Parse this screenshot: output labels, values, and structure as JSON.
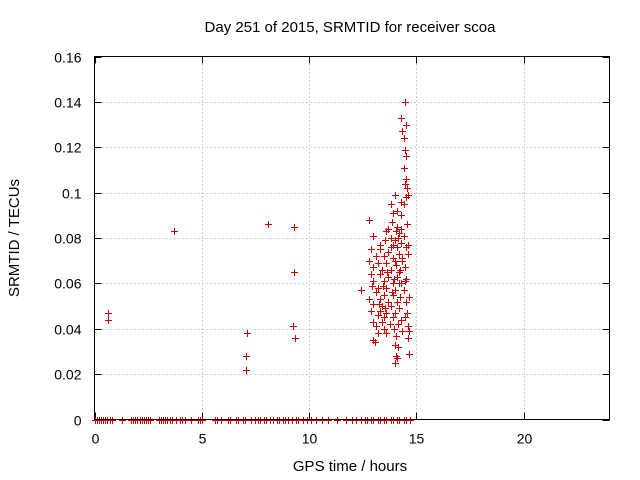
{
  "chart_data": {
    "type": "scatter",
    "title": "Day 251 of 2015, SRMTID for receiver scoa",
    "xlabel": "GPS time / hours",
    "ylabel": "SRMTID / TECUs",
    "xlim": [
      0,
      24
    ],
    "ylim": [
      0,
      0.16
    ],
    "xticks": [
      0,
      5,
      10,
      15,
      20
    ],
    "xtick_labels": [
      "0",
      "5",
      "10",
      "15",
      "20"
    ],
    "yticks": [
      0,
      0.02,
      0.04,
      0.06,
      0.08,
      0.1,
      0.12,
      0.14,
      0.16
    ],
    "ytick_labels": [
      "0",
      "0.02",
      "0.04",
      "0.06",
      "0.08",
      "0.1",
      "0.12",
      "0.14",
      "0.16"
    ],
    "grid": true,
    "marker": "+",
    "color": "#cc0000",
    "series": [
      {
        "name": "SRMTID",
        "points": [
          [
            0.65,
            0.047
          ],
          [
            0.65,
            0.044
          ],
          [
            3.7,
            0.083
          ],
          [
            8.1,
            0.086
          ],
          [
            9.3,
            0.085
          ],
          [
            9.3,
            0.065
          ],
          [
            9.25,
            0.041
          ],
          [
            9.35,
            0.036
          ],
          [
            7.1,
            0.038
          ],
          [
            7.05,
            0.028
          ],
          [
            7.05,
            0.022
          ],
          [
            12.4,
            0.057
          ],
          [
            14.45,
            0.14
          ],
          [
            14.3,
            0.133
          ],
          [
            14.5,
            0.13
          ],
          [
            14.35,
            0.127
          ],
          [
            14.4,
            0.124
          ],
          [
            14.45,
            0.119
          ],
          [
            14.5,
            0.116
          ],
          [
            14.4,
            0.111
          ],
          [
            14.5,
            0.106
          ],
          [
            14.45,
            0.104
          ],
          [
            14.55,
            0.102
          ],
          [
            14.6,
            0.099
          ],
          [
            14.5,
            0.098
          ],
          [
            14.0,
            0.099
          ],
          [
            14.3,
            0.096
          ],
          [
            14.4,
            0.095
          ],
          [
            13.8,
            0.095
          ],
          [
            14.1,
            0.092
          ],
          [
            14.3,
            0.09
          ],
          [
            13.9,
            0.091
          ],
          [
            14.55,
            0.086
          ],
          [
            13.85,
            0.087
          ],
          [
            14.1,
            0.085
          ],
          [
            14.3,
            0.084
          ],
          [
            12.8,
            0.088
          ],
          [
            13.6,
            0.083
          ],
          [
            14.05,
            0.083
          ],
          [
            14.2,
            0.082
          ],
          [
            14.4,
            0.081
          ],
          [
            13.0,
            0.081
          ],
          [
            13.8,
            0.08
          ],
          [
            14.0,
            0.079
          ],
          [
            14.3,
            0.078
          ],
          [
            14.6,
            0.077
          ],
          [
            13.9,
            0.077
          ],
          [
            14.1,
            0.076
          ],
          [
            14.5,
            0.076
          ],
          [
            12.9,
            0.075
          ],
          [
            13.3,
            0.075
          ],
          [
            13.7,
            0.074
          ],
          [
            14.2,
            0.073
          ],
          [
            14.6,
            0.073
          ],
          [
            13.1,
            0.072
          ],
          [
            13.5,
            0.072
          ],
          [
            13.9,
            0.071
          ],
          [
            14.35,
            0.07
          ],
          [
            12.8,
            0.07
          ],
          [
            13.2,
            0.069
          ],
          [
            13.6,
            0.069
          ],
          [
            14.05,
            0.068
          ],
          [
            14.45,
            0.067
          ],
          [
            13.0,
            0.067
          ],
          [
            13.4,
            0.066
          ],
          [
            13.8,
            0.066
          ],
          [
            14.2,
            0.065
          ],
          [
            12.9,
            0.064
          ],
          [
            13.3,
            0.064
          ],
          [
            13.7,
            0.063
          ],
          [
            14.1,
            0.063
          ],
          [
            14.5,
            0.062
          ],
          [
            13.0,
            0.061
          ],
          [
            13.5,
            0.061
          ],
          [
            13.9,
            0.06
          ],
          [
            14.3,
            0.06
          ],
          [
            12.95,
            0.059
          ],
          [
            13.2,
            0.058
          ],
          [
            13.6,
            0.058
          ],
          [
            14.0,
            0.057
          ],
          [
            14.4,
            0.057
          ],
          [
            13.1,
            0.056
          ],
          [
            13.5,
            0.055
          ],
          [
            13.9,
            0.055
          ],
          [
            14.25,
            0.054
          ],
          [
            14.65,
            0.054
          ],
          [
            12.8,
            0.053
          ],
          [
            13.3,
            0.053
          ],
          [
            13.7,
            0.052
          ],
          [
            14.1,
            0.052
          ],
          [
            14.5,
            0.052
          ],
          [
            13.0,
            0.051
          ],
          [
            13.4,
            0.05
          ],
          [
            13.8,
            0.05
          ],
          [
            14.2,
            0.049
          ],
          [
            12.9,
            0.048
          ],
          [
            13.3,
            0.048
          ],
          [
            13.6,
            0.047
          ],
          [
            14.0,
            0.047
          ],
          [
            14.55,
            0.047
          ],
          [
            13.2,
            0.046
          ],
          [
            13.5,
            0.045
          ],
          [
            13.9,
            0.045
          ],
          [
            14.3,
            0.044
          ],
          [
            13.0,
            0.043
          ],
          [
            13.4,
            0.043
          ],
          [
            13.75,
            0.042
          ],
          [
            14.15,
            0.042
          ],
          [
            14.6,
            0.041
          ],
          [
            13.1,
            0.041
          ],
          [
            13.5,
            0.04
          ],
          [
            13.95,
            0.04
          ],
          [
            14.35,
            0.039
          ],
          [
            14.65,
            0.039
          ],
          [
            13.2,
            0.038
          ],
          [
            13.6,
            0.038
          ],
          [
            14.05,
            0.037
          ],
          [
            14.6,
            0.036
          ],
          [
            13.0,
            0.035
          ],
          [
            13.05,
            0.034
          ],
          [
            14.0,
            0.033
          ],
          [
            14.15,
            0.032
          ],
          [
            14.05,
            0.028
          ],
          [
            14.1,
            0.027
          ],
          [
            14.0,
            0.025
          ],
          [
            14.65,
            0.029
          ],
          [
            13.3,
            0.077
          ],
          [
            13.55,
            0.079
          ],
          [
            13.8,
            0.076
          ],
          [
            14.15,
            0.08
          ],
          [
            14.35,
            0.071
          ],
          [
            13.65,
            0.065
          ],
          [
            13.95,
            0.062
          ],
          [
            14.25,
            0.066
          ],
          [
            13.45,
            0.059
          ],
          [
            13.85,
            0.056
          ],
          [
            14.45,
            0.061
          ],
          [
            13.25,
            0.051
          ],
          [
            13.55,
            0.049
          ],
          [
            14.45,
            0.045
          ],
          [
            13.7,
            0.084
          ],
          [
            14.0,
            0.07
          ],
          [
            14.2,
            0.06
          ],
          [
            0.0,
            0
          ],
          [
            0.1,
            0
          ],
          [
            0.2,
            0
          ],
          [
            0.3,
            0
          ],
          [
            0.4,
            0
          ],
          [
            0.5,
            0
          ],
          [
            0.6,
            0
          ],
          [
            0.7,
            0
          ],
          [
            0.8,
            0
          ],
          [
            1.3,
            0
          ],
          [
            1.7,
            0
          ],
          [
            1.8,
            0
          ],
          [
            1.9,
            0
          ],
          [
            2.0,
            0
          ],
          [
            2.1,
            0
          ],
          [
            2.2,
            0
          ],
          [
            2.3,
            0
          ],
          [
            2.4,
            0
          ],
          [
            2.5,
            0
          ],
          [
            2.6,
            0
          ],
          [
            3.0,
            0
          ],
          [
            3.1,
            0
          ],
          [
            3.2,
            0
          ],
          [
            3.3,
            0
          ],
          [
            3.4,
            0
          ],
          [
            3.5,
            0
          ],
          [
            3.6,
            0
          ],
          [
            3.8,
            0
          ],
          [
            4.0,
            0
          ],
          [
            4.1,
            0
          ],
          [
            4.2,
            0
          ],
          [
            4.5,
            0
          ],
          [
            4.8,
            0
          ],
          [
            4.9,
            0
          ],
          [
            5.0,
            0
          ],
          [
            5.6,
            0
          ],
          [
            5.7,
            0
          ],
          [
            5.9,
            0
          ],
          [
            6.2,
            0
          ],
          [
            6.3,
            0
          ],
          [
            6.6,
            0
          ],
          [
            6.7,
            0
          ],
          [
            6.9,
            0
          ],
          [
            7.0,
            0
          ],
          [
            7.3,
            0
          ],
          [
            7.5,
            0
          ],
          [
            7.6,
            0
          ],
          [
            7.7,
            0
          ],
          [
            7.9,
            0
          ],
          [
            8.0,
            0
          ],
          [
            8.2,
            0
          ],
          [
            8.3,
            0
          ],
          [
            8.5,
            0
          ],
          [
            8.6,
            0
          ],
          [
            8.8,
            0
          ],
          [
            8.9,
            0
          ],
          [
            9.0,
            0
          ],
          [
            9.2,
            0
          ],
          [
            9.4,
            0
          ],
          [
            9.5,
            0
          ],
          [
            9.7,
            0
          ],
          [
            9.9,
            0
          ],
          [
            10.1,
            0
          ],
          [
            10.3,
            0
          ],
          [
            10.6,
            0
          ],
          [
            10.9,
            0
          ],
          [
            11.3,
            0
          ],
          [
            11.7,
            0
          ],
          [
            12.0,
            0
          ],
          [
            12.2,
            0
          ],
          [
            12.4,
            0
          ],
          [
            12.6,
            0
          ],
          [
            12.7,
            0
          ],
          [
            12.9,
            0
          ],
          [
            13.0,
            0
          ],
          [
            13.2,
            0
          ],
          [
            13.3,
            0
          ],
          [
            13.5,
            0
          ],
          [
            13.6,
            0
          ],
          [
            13.8,
            0
          ],
          [
            13.9,
            0
          ],
          [
            14.1,
            0
          ],
          [
            14.2,
            0
          ],
          [
            14.4,
            0
          ],
          [
            14.5,
            0
          ],
          [
            14.7,
            0
          ]
        ]
      }
    ]
  }
}
